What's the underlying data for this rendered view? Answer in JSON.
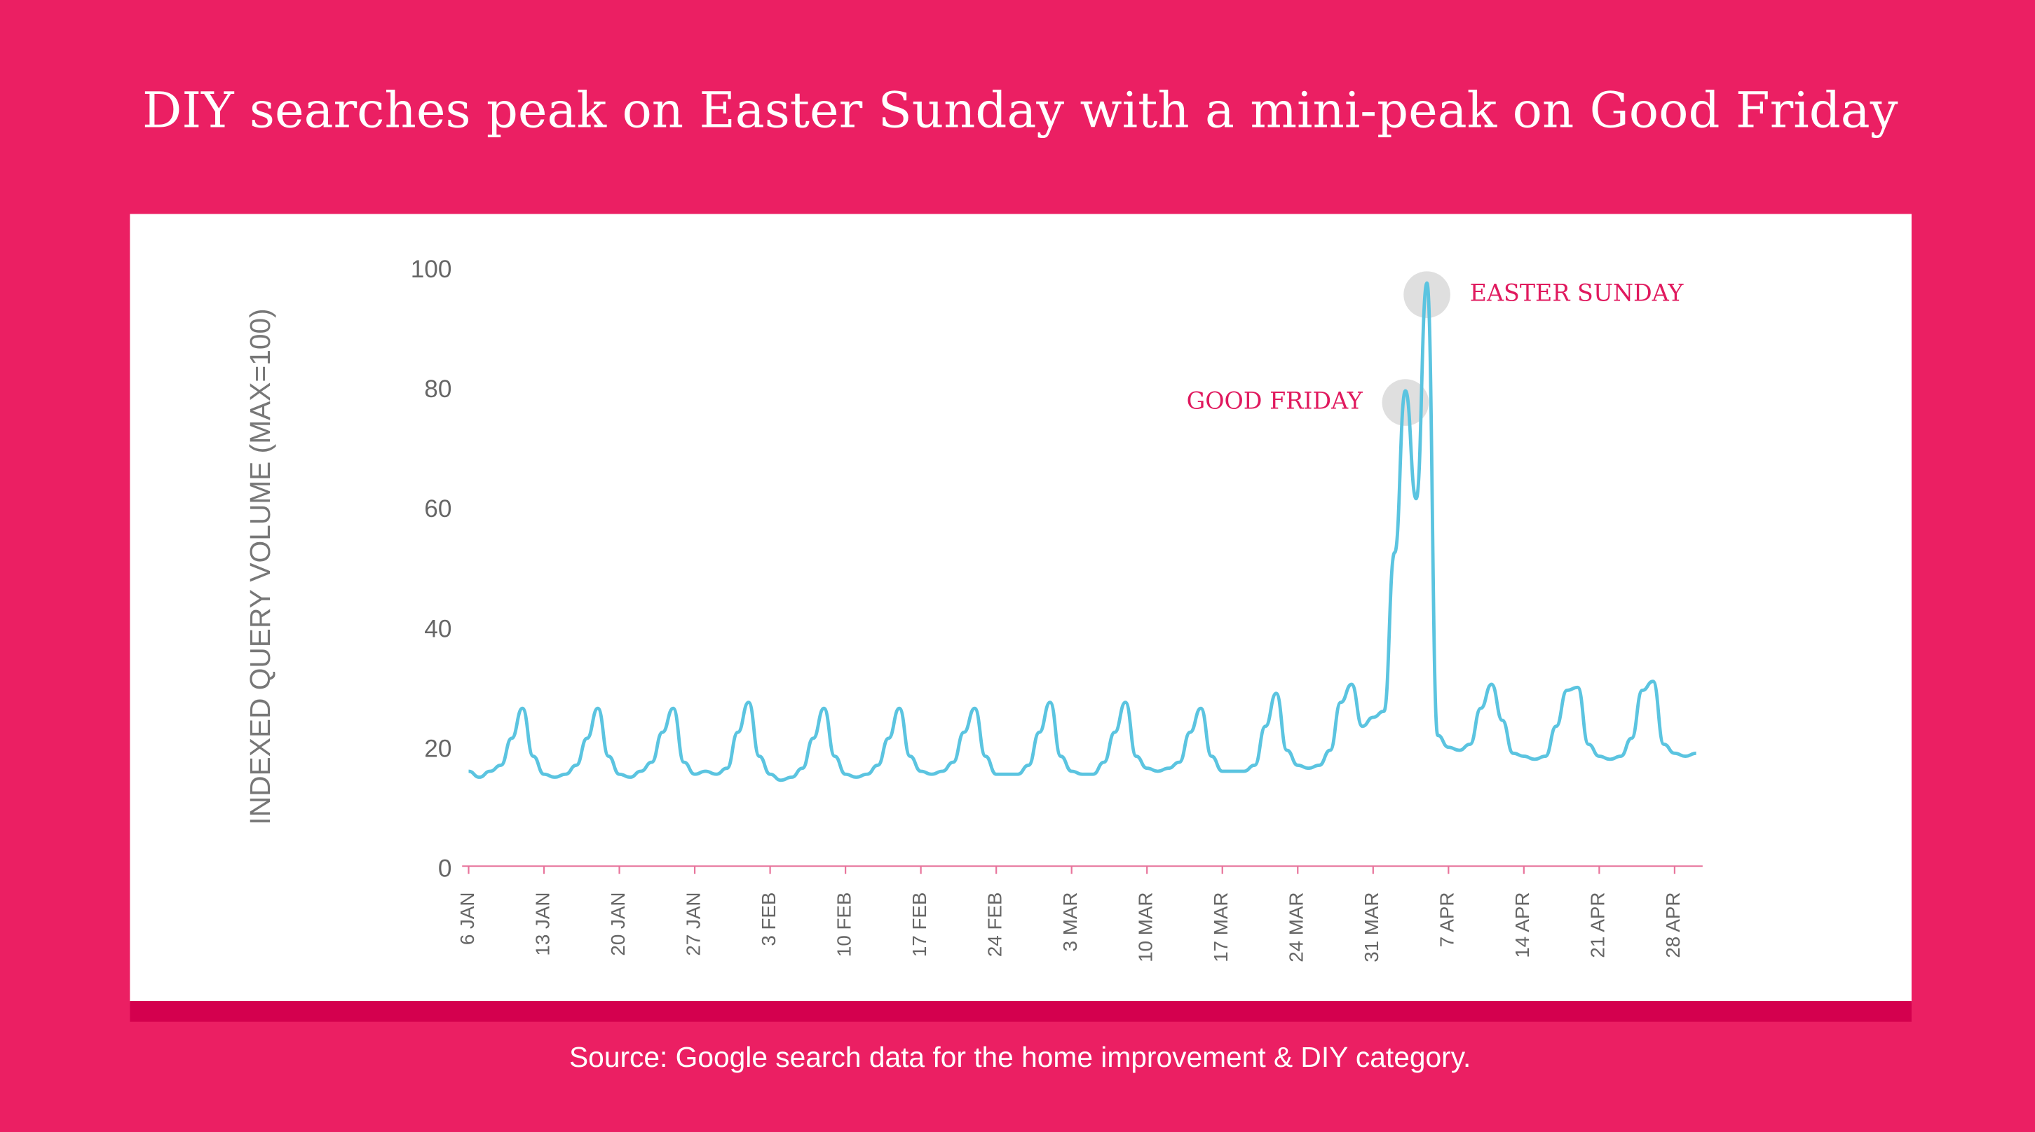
{
  "chart_data": {
    "type": "line",
    "title": "DIY searches peak on Easter Sunday with a mini-peak on Good Friday",
    "y_label": "INDEXED QUERY VOLUME (MAX=100)",
    "source": "Source: Google search data for the home improvement & DIY category.",
    "categories": [
      "6 JAN",
      null,
      null,
      null,
      null,
      null,
      null,
      "13 JAN",
      null,
      null,
      null,
      null,
      null,
      null,
      "20 JAN",
      null,
      null,
      null,
      null,
      null,
      null,
      "27 JAN",
      null,
      null,
      null,
      null,
      null,
      null,
      "3 FEB",
      null,
      null,
      null,
      null,
      null,
      null,
      "10 FEB",
      null,
      null,
      null,
      null,
      null,
      null,
      "17 FEB",
      null,
      null,
      null,
      null,
      null,
      null,
      "24 FEB",
      null,
      null,
      null,
      null,
      null,
      null,
      "3 MAR",
      null,
      null,
      null,
      null,
      null,
      null,
      "10 MAR",
      null,
      null,
      null,
      null,
      null,
      null,
      "17 MAR",
      null,
      null,
      null,
      null,
      null,
      null,
      "24 MAR",
      null,
      null,
      null,
      null,
      null,
      null,
      "31 MAR",
      null,
      null,
      null,
      null,
      null,
      null,
      "7 APR",
      null,
      null,
      null,
      null,
      null,
      null,
      "14 APR",
      null,
      null,
      null,
      null,
      null,
      null,
      "21 APR",
      null,
      null,
      null,
      null,
      null,
      null,
      "28 APR",
      null,
      null
    ],
    "series": [
      {
        "name": "DIY searches",
        "color": "#5bc4e0",
        "values": [
          16.5,
          15.5,
          16.5,
          17.5,
          22,
          27,
          19,
          16,
          15.5,
          16,
          17.5,
          22,
          27,
          19,
          16,
          15.5,
          16.5,
          18,
          23,
          27,
          18,
          16,
          16.5,
          16,
          17,
          23,
          28,
          19,
          16,
          15,
          15.5,
          17,
          22,
          27,
          19,
          16,
          15.5,
          16,
          17.5,
          22,
          27,
          19,
          16.5,
          16,
          16.5,
          18,
          23,
          27,
          19,
          16,
          16,
          16,
          17.5,
          23,
          28,
          19,
          16.5,
          16,
          16,
          18,
          23,
          28,
          19,
          17,
          16.5,
          17,
          18,
          23,
          27,
          19,
          16.5,
          16.5,
          16.5,
          17.5,
          24,
          29.5,
          20,
          17.5,
          17,
          17.5,
          20,
          28,
          31,
          24,
          25.5,
          26.5,
          53,
          80,
          62,
          98,
          22.5,
          20.5,
          20,
          21,
          27,
          31,
          25,
          19.5,
          19,
          18.5,
          19,
          24,
          30,
          30.5,
          21,
          19,
          18.5,
          19,
          22,
          30,
          31.5,
          21,
          19.5,
          19,
          19.5
        ]
      }
    ],
    "ylim": [
      0,
      100
    ],
    "yticks": [
      0,
      20,
      40,
      60,
      80,
      100
    ],
    "annotations": [
      "GOOD FRIDAY",
      "EASTER SUNDAY"
    ]
  }
}
